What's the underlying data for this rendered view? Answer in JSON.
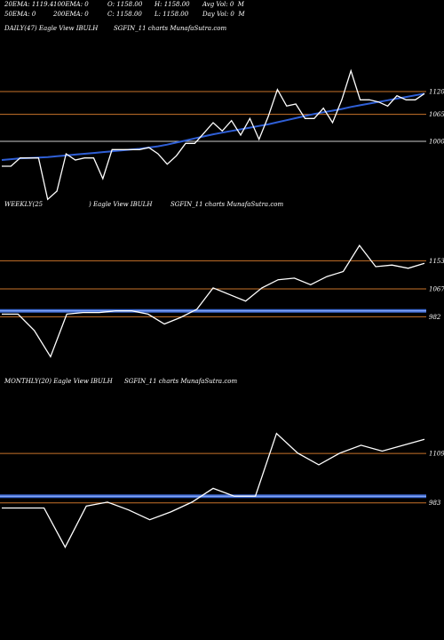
{
  "header": {
    "row1": [
      "20EMA: 1119.4",
      "100EMA: 0",
      "O: 1158.00",
      "H: 1158.00",
      "Avg Vol: 0  M"
    ],
    "row2": [
      "50EMA: 0",
      "200EMA: 0",
      "C: 1158.00",
      "L: 1158.00",
      "Day Vol: 0  M"
    ]
  },
  "chart_data": [
    {
      "type": "line",
      "title": "DAILY(47) Eagle  View  IBULH",
      "subtitle": "SGFIN_11 charts MunafaSutra.com",
      "levels": [
        1120,
        1065,
        1000
      ],
      "level_labels": [
        "1120",
        "1065",
        "1000"
      ],
      "ylim": [
        880,
        1180
      ],
      "price": [
        940,
        940,
        960,
        960,
        960,
        860,
        880,
        970,
        955,
        960,
        960,
        910,
        980,
        980,
        980,
        980,
        985,
        970,
        945,
        965,
        995,
        995,
        1020,
        1045,
        1025,
        1050,
        1015,
        1055,
        1005,
        1060,
        1125,
        1085,
        1090,
        1055,
        1055,
        1080,
        1045,
        1100,
        1170,
        1100,
        1100,
        1095,
        1085,
        1110,
        1100,
        1100,
        1115
      ],
      "ema": [
        955,
        957,
        959,
        960,
        961,
        962,
        964,
        966,
        968,
        970,
        972,
        974,
        976,
        978,
        980,
        982,
        985,
        988,
        992,
        997,
        1002,
        1007,
        1012,
        1017,
        1021,
        1025,
        1029,
        1033,
        1037,
        1041,
        1046,
        1051,
        1056,
        1061,
        1066,
        1070,
        1074,
        1078,
        1083,
        1087,
        1091,
        1095,
        1099,
        1103,
        1107,
        1111,
        1115
      ]
    },
    {
      "type": "line",
      "title": "WEEKLY(25",
      "subtitle": ") Eagle  View  IBULH",
      "subtitle2": "SGFIN_11 charts MunafaSutra.com",
      "levels": [
        1153,
        1067,
        982
      ],
      "level_labels": [
        "1153",
        "1067",
        "982"
      ],
      "ema_level": 1000,
      "ylim": [
        850,
        1230
      ],
      "price": [
        990,
        990,
        940,
        860,
        990,
        995,
        995,
        1000,
        1000,
        990,
        960,
        980,
        1005,
        1070,
        1050,
        1030,
        1070,
        1095,
        1100,
        1080,
        1105,
        1120,
        1200,
        1135,
        1140,
        1130,
        1145
      ]
    },
    {
      "type": "line",
      "title": "MONTHLY(20) Eagle  View  IBULH",
      "subtitle": "SGFIN_11 charts MunafaSutra.com",
      "levels": [
        1109,
        983
      ],
      "level_labels": [
        "1109",
        "983"
      ],
      "ema_level": 1000,
      "ylim": [
        860,
        1200
      ],
      "price": [
        970,
        970,
        970,
        870,
        975,
        985,
        965,
        940,
        960,
        985,
        1020,
        1000,
        1000,
        1160,
        1110,
        1080,
        1110,
        1130,
        1115,
        1130,
        1145
      ]
    }
  ]
}
